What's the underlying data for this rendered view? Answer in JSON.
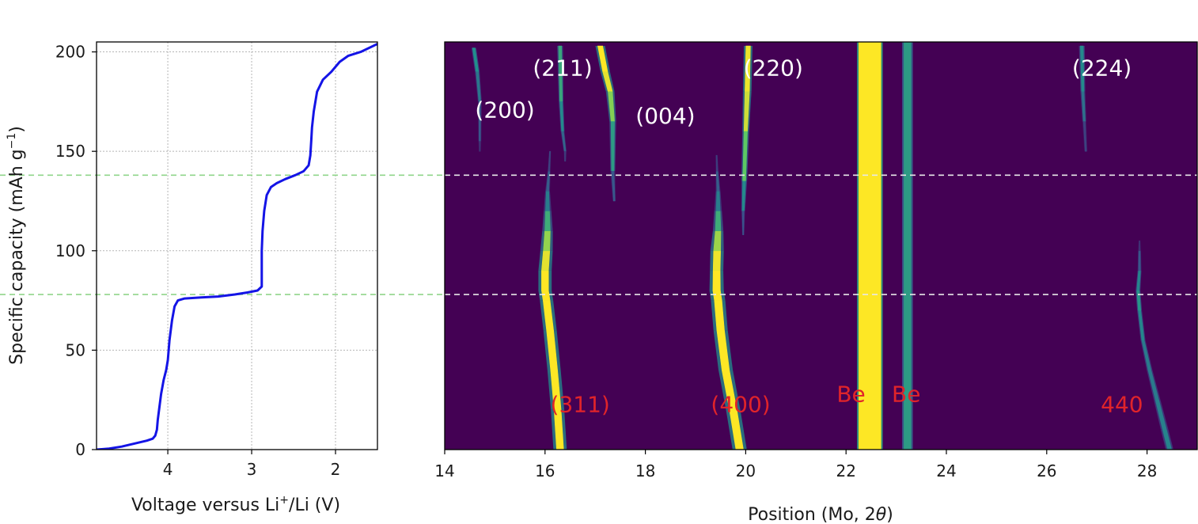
{
  "chart_data": [
    {
      "type": "line",
      "xlabel_parts": [
        "Voltage versus Li",
        "+",
        "/Li (V)"
      ],
      "ylabel_parts": [
        "Specific capacity (mAh g",
        "−1",
        ")"
      ],
      "x_reversed": true,
      "xlim": [
        4.85,
        1.5
      ],
      "ylim": [
        0,
        205
      ],
      "xticks": [
        4,
        3,
        2
      ],
      "yticks": [
        0,
        50,
        100,
        150,
        200
      ],
      "grid": true,
      "series": [
        {
          "color": "#1414e6",
          "x": [
            4.85,
            4.7,
            4.55,
            4.45,
            4.35,
            4.25,
            4.18,
            4.15,
            4.13,
            4.12,
            4.08,
            4.05,
            4.02,
            4.0,
            3.98,
            3.95,
            3.92,
            3.88,
            3.8,
            3.6,
            3.4,
            3.2,
            3.05,
            2.93,
            2.88,
            2.88,
            2.88,
            2.87,
            2.85,
            2.82,
            2.77,
            2.7,
            2.6,
            2.48,
            2.38,
            2.32,
            2.3,
            2.29,
            2.28,
            2.26,
            2.22,
            2.15,
            2.05,
            1.95,
            1.85,
            1.7,
            1.5
          ],
          "y": [
            0,
            0.5,
            1.5,
            2.5,
            3.5,
            4.5,
            5.5,
            7,
            10,
            15,
            28,
            35,
            40,
            45,
            55,
            65,
            72,
            75,
            76,
            76.5,
            77,
            78,
            79,
            80,
            82,
            90,
            100,
            110,
            120,
            128,
            132,
            134,
            136,
            138,
            140,
            143,
            148,
            155,
            162,
            170,
            180,
            186,
            190,
            195,
            198,
            200,
            204
          ]
        }
      ],
      "reference_lines_y": [
        138,
        78
      ],
      "reference_line_color": "#90d58a"
    },
    {
      "type": "heatmap",
      "xlabel_parts": [
        "Position (Mo, 2",
        "θ",
        ")"
      ],
      "xlim": [
        14,
        29
      ],
      "xticks": [
        14,
        16,
        18,
        20,
        22,
        24,
        26,
        28
      ],
      "ylim": [
        0,
        205
      ],
      "background_color": "#440154",
      "colormap": [
        "#440154",
        "#3b528b",
        "#21908c",
        "#5dc863",
        "#fde725"
      ],
      "reference_lines_y": [
        138,
        78
      ],
      "reference_line_color": "#e8e8e8",
      "traces": [
        {
          "label": "(311)",
          "label_color": "#e0242a",
          "label_pos": [
            16.7,
            19
          ],
          "path": [
            [
              16.3,
              0
            ],
            [
              16.25,
              20
            ],
            [
              16.18,
              40
            ],
            [
              16.1,
              60
            ],
            [
              16.03,
              75
            ],
            [
              16.0,
              80
            ],
            [
              16.0,
              90
            ],
            [
              16.03,
              100
            ],
            [
              16.05,
              110
            ],
            [
              16.05,
              120
            ],
            [
              16.05,
              130
            ],
            [
              16.08,
              140
            ],
            [
              16.1,
              150
            ]
          ],
          "width": [
            0.14,
            0.14,
            0.14,
            0.14,
            0.14,
            0.14,
            0.14,
            0.13,
            0.11,
            0.08,
            0.05,
            0.03,
            0.02
          ],
          "intensity": [
            1,
            1,
            1,
            1,
            1,
            1,
            1,
            0.92,
            0.75,
            0.5,
            0.35,
            0.25,
            0.15
          ]
        },
        {
          "label": "(400)",
          "label_color": "#e0242a",
          "label_pos": [
            19.9,
            19
          ],
          "path": [
            [
              19.88,
              0
            ],
            [
              19.75,
              20
            ],
            [
              19.6,
              40
            ],
            [
              19.5,
              60
            ],
            [
              19.45,
              75
            ],
            [
              19.42,
              80
            ],
            [
              19.42,
              90
            ],
            [
              19.43,
              100
            ],
            [
              19.45,
              110
            ],
            [
              19.45,
              120
            ],
            [
              19.45,
              130
            ],
            [
              19.43,
              140
            ],
            [
              19.42,
              148
            ]
          ],
          "width": [
            0.15,
            0.15,
            0.15,
            0.15,
            0.15,
            0.15,
            0.14,
            0.14,
            0.11,
            0.08,
            0.05,
            0.03,
            0.02
          ],
          "intensity": [
            1,
            1,
            1,
            1,
            1,
            1,
            1,
            0.95,
            0.75,
            0.5,
            0.35,
            0.25,
            0.12
          ]
        },
        {
          "label": "440",
          "label_color": "#e0242a",
          "label_pos": [
            27.5,
            19
          ],
          "path": [
            [
              28.45,
              0
            ],
            [
              28.35,
              10
            ],
            [
              28.2,
              25
            ],
            [
              28.05,
              40
            ],
            [
              27.92,
              55
            ],
            [
              27.85,
              70
            ],
            [
              27.82,
              80
            ],
            [
              27.85,
              90
            ],
            [
              27.85,
              100
            ],
            [
              27.85,
              105
            ]
          ],
          "width": [
            0.08,
            0.08,
            0.07,
            0.06,
            0.05,
            0.05,
            0.05,
            0.04,
            0.03,
            0.02
          ],
          "intensity": [
            0.45,
            0.45,
            0.42,
            0.4,
            0.42,
            0.5,
            0.55,
            0.35,
            0.2,
            0.1
          ]
        },
        {
          "label": "(200)",
          "label_color": "#ffffff",
          "label_pos": [
            15.2,
            167
          ],
          "path": [
            [
              14.58,
              202
            ],
            [
              14.65,
              190
            ],
            [
              14.7,
              175
            ],
            [
              14.7,
              155
            ],
            [
              14.7,
              150
            ]
          ],
          "width": [
            0.05,
            0.05,
            0.04,
            0.03,
            0.02
          ],
          "intensity": [
            0.55,
            0.45,
            0.35,
            0.2,
            0.1
          ]
        },
        {
          "label": "(211)",
          "label_color": "#ffffff",
          "label_pos": [
            16.35,
            188
          ],
          "path": [
            [
              16.3,
              203
            ],
            [
              16.32,
              175
            ],
            [
              16.35,
              160
            ],
            [
              16.4,
              150
            ],
            [
              16.4,
              145
            ]
          ],
          "width": [
            0.06,
            0.05,
            0.04,
            0.03,
            0.02
          ],
          "intensity": [
            0.65,
            0.55,
            0.4,
            0.25,
            0.1
          ]
        },
        {
          "label": "(004)",
          "label_color": "#ffffff",
          "label_pos": [
            18.4,
            164
          ],
          "path": [
            [
              17.1,
              203
            ],
            [
              17.2,
              190
            ],
            [
              17.3,
              180
            ],
            [
              17.35,
              165
            ],
            [
              17.35,
              140
            ],
            [
              17.38,
              125
            ]
          ],
          "width": [
            0.1,
            0.1,
            0.09,
            0.07,
            0.05,
            0.03
          ],
          "intensity": [
            1,
            1,
            0.92,
            0.7,
            0.4,
            0.15
          ]
        },
        {
          "label": "(220)",
          "label_color": "#ffffff",
          "label_pos": [
            20.55,
            188
          ],
          "path": [
            [
              20.05,
              203
            ],
            [
              20.03,
              180
            ],
            [
              20.0,
              160
            ],
            [
              19.97,
              135
            ],
            [
              19.95,
              120
            ],
            [
              19.95,
              108
            ]
          ],
          "width": [
            0.09,
            0.09,
            0.07,
            0.06,
            0.04,
            0.02
          ],
          "intensity": [
            1,
            0.95,
            0.9,
            0.6,
            0.35,
            0.15
          ]
        },
        {
          "label": "(224)",
          "label_color": "#ffffff",
          "label_pos": [
            27.1,
            188
          ],
          "path": [
            [
              26.7,
              203
            ],
            [
              26.72,
              180
            ],
            [
              26.75,
              165
            ],
            [
              26.78,
              150
            ]
          ],
          "width": [
            0.06,
            0.05,
            0.04,
            0.03
          ],
          "intensity": [
            0.5,
            0.45,
            0.3,
            0.1
          ]
        }
      ],
      "bands": [
        {
          "label": "Be",
          "label_color": "#e0242a",
          "label_pos": [
            22.1,
            24
          ],
          "x": [
            22.25,
            22.7
          ],
          "intensity": 1
        },
        {
          "label": "Be",
          "label_color": "#e0242a",
          "label_pos": [
            23.2,
            24
          ],
          "x": [
            23.15,
            23.3
          ],
          "intensity": 0.55
        }
      ]
    }
  ]
}
